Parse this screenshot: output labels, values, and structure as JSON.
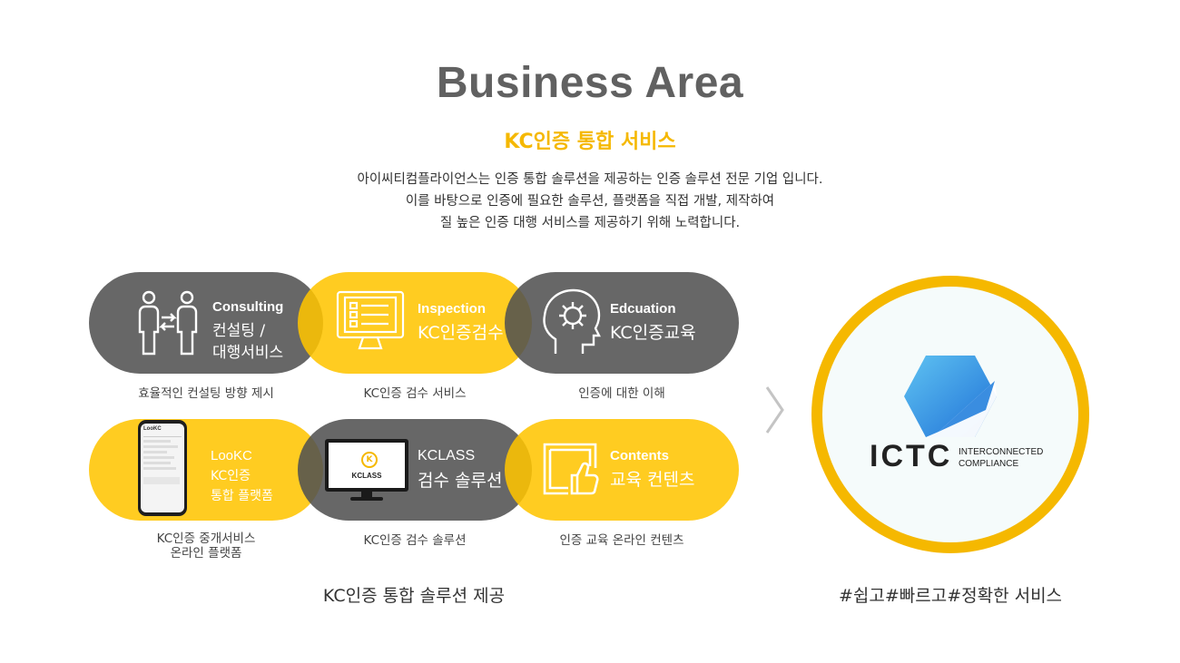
{
  "header": {
    "title": "Business Area",
    "subtitle": "KC인증 통합 서비스",
    "description": [
      "아이씨티컴플라이언스는 인증 통합 솔루션을 제공하는 인증 솔루션 전문 기업 입니다.",
      "이를 바탕으로 인증에 필요한 솔루션, 플랫폼을 직접 개발, 제작하여",
      "질 높은 인증 대행 서비스를 제공하기 위해 노력합니다."
    ]
  },
  "services": [
    {
      "en": "Consulting",
      "ko_lines": [
        "컨설팅 /",
        "대행서비스"
      ],
      "caption": [
        "효율적인 컨설팅 방향 제시"
      ],
      "color": "dark",
      "icon": "consulting-people-icon"
    },
    {
      "en": "Inspection",
      "ko_lines": [
        "KC인증검수"
      ],
      "caption": [
        "KC인증 검수 서비스"
      ],
      "color": "yellow",
      "icon": "monitor-checklist-icon"
    },
    {
      "en": "Edcuation",
      "ko_lines": [
        "KC인증교육"
      ],
      "caption": [
        "인증에 대한 이해"
      ],
      "color": "dark",
      "icon": "head-gear-icon"
    },
    {
      "en": "LooKC",
      "ko_lines": [
        "KC인증",
        "통합 플랫폼"
      ],
      "caption": [
        "KC인증 중개서비스",
        "온라인 플랫폼"
      ],
      "color": "yellow",
      "icon": "smartphone-app-icon"
    },
    {
      "en": "KCLASS",
      "ko_lines": [
        "검수 솔루션"
      ],
      "caption": [
        "KC인증 검수 솔루션"
      ],
      "color": "dark",
      "icon": "kclass-monitor-icon"
    },
    {
      "en": "Contents",
      "ko_lines": [
        "교육 컨텐츠"
      ],
      "caption": [
        "인증 교육 온라인 컨텐츠"
      ],
      "color": "yellow",
      "icon": "screen-thumbsup-icon"
    }
  ],
  "phone_mock": {
    "app_name": "LooKC"
  },
  "kclass_logo": {
    "label": "KCLASS",
    "mark": "K"
  },
  "bottom": {
    "left_label": "KC인증 통합 솔루션 제공",
    "right_label": "#쉽고#빠르고#정확한 서비스"
  },
  "logo": {
    "wordmark": "ICTC",
    "tagline_line1": "INTERCONNECTED",
    "tagline_line2": "COMPLIANCE"
  },
  "colors": {
    "accent_yellow": "#ffc400",
    "dark_gray": "#505050",
    "title_gray": "#616161",
    "logo_blue": "#2f8fe6"
  }
}
